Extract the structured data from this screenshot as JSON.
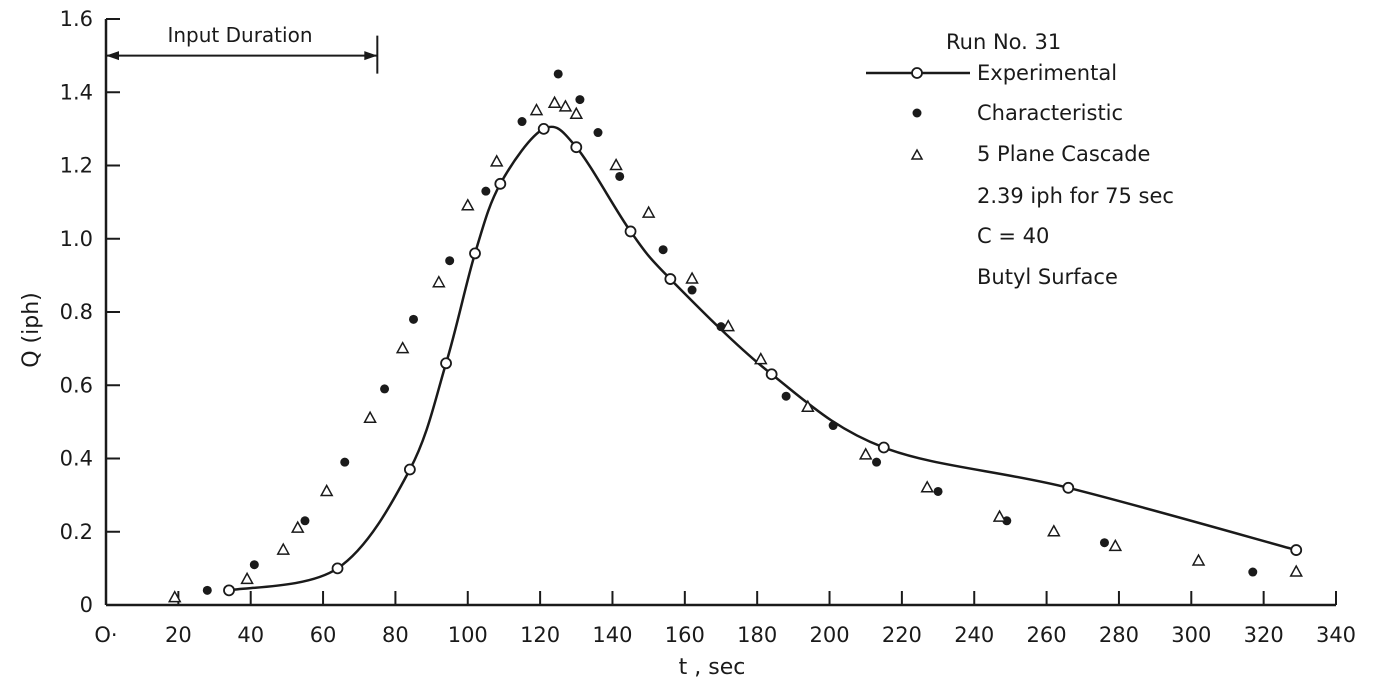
{
  "chart_data": {
    "type": "scatter",
    "xlabel": "t , sec",
    "ylabel": "Q (iph)",
    "xlim": [
      0,
      340
    ],
    "ylim": [
      0,
      1.6
    ],
    "xticks": [
      0,
      20,
      40,
      60,
      80,
      100,
      120,
      140,
      160,
      180,
      200,
      220,
      240,
      260,
      280,
      300,
      320,
      340
    ],
    "xtick_labels": [
      "O·",
      "20",
      "40",
      "60",
      "80",
      "100",
      "120",
      "140",
      "160",
      "180",
      "200",
      "220",
      "240",
      "260",
      "280",
      "300",
      "320",
      "340"
    ],
    "yticks": [
      0,
      0.2,
      0.4,
      0.6,
      0.8,
      1.0,
      1.2,
      1.4,
      1.6
    ],
    "ytick_labels": [
      "0",
      "0.2",
      "0.4",
      "0.6",
      "0.8",
      "1.0",
      "1.2",
      "1.4",
      "1.6"
    ],
    "grid": false,
    "legend_position": "top-right",
    "annotations": {
      "run": "Run No. 31",
      "input_duration": "Input Duration",
      "input_duration_range": [
        0,
        75
      ],
      "input_duration_y": 1.5,
      "notes": [
        "2.39 iph for 75 sec",
        "C = 40",
        "Butyl Surface"
      ]
    },
    "series": [
      {
        "name": "Experimental",
        "marker": "open-circle-line",
        "x": [
          34,
          64,
          84,
          94,
          102,
          109,
          121,
          130,
          145,
          156,
          184,
          215,
          266,
          329
        ],
        "y": [
          0.04,
          0.1,
          0.37,
          0.66,
          0.96,
          1.15,
          1.3,
          1.25,
          1.02,
          0.89,
          0.63,
          0.43,
          0.32,
          0.15
        ]
      },
      {
        "name": "Characteristic",
        "marker": "dot",
        "x": [
          28,
          41,
          55,
          66,
          77,
          85,
          95,
          105,
          115,
          125,
          131,
          136,
          142,
          154,
          162,
          170,
          188,
          201,
          213,
          230,
          249,
          276,
          317
        ],
        "y": [
          0.04,
          0.11,
          0.23,
          0.39,
          0.59,
          0.78,
          0.94,
          1.13,
          1.32,
          1.45,
          1.38,
          1.29,
          1.17,
          0.97,
          0.86,
          0.76,
          0.57,
          0.49,
          0.39,
          0.31,
          0.23,
          0.17,
          0.09
        ]
      },
      {
        "name": "5 Plane Cascade",
        "marker": "triangle",
        "x": [
          19,
          39,
          49,
          53,
          61,
          73,
          82,
          92,
          100,
          108,
          119,
          124,
          127,
          130,
          141,
          150,
          162,
          172,
          181,
          194,
          210,
          227,
          247,
          262,
          279,
          302,
          329
        ],
        "y": [
          0.02,
          0.07,
          0.15,
          0.21,
          0.31,
          0.51,
          0.7,
          0.88,
          1.09,
          1.21,
          1.35,
          1.37,
          1.36,
          1.34,
          1.2,
          1.07,
          0.89,
          0.76,
          0.67,
          0.54,
          0.41,
          0.32,
          0.24,
          0.2,
          0.16,
          0.12,
          0.09
        ]
      }
    ]
  }
}
